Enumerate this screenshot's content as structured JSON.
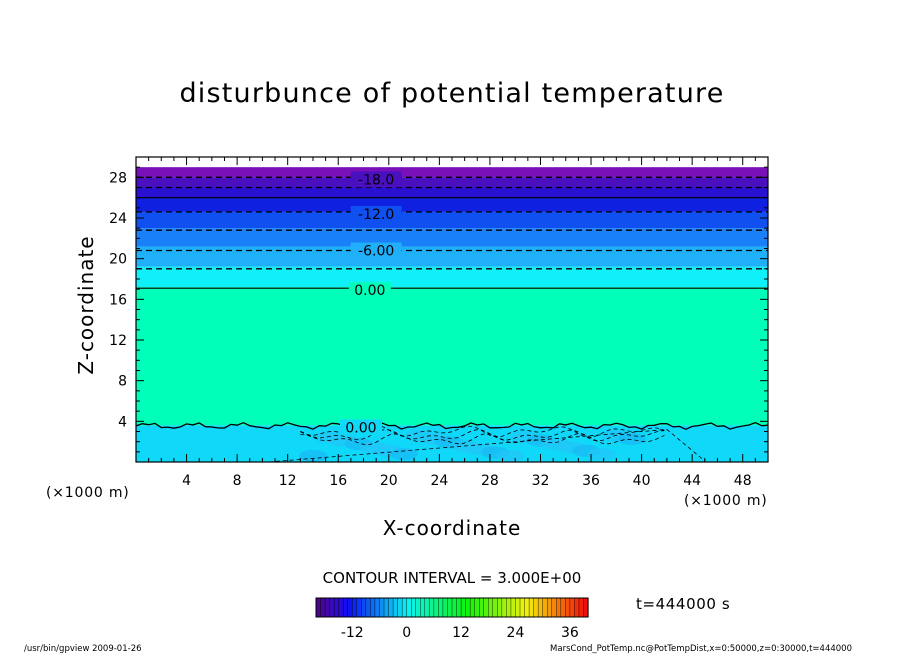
{
  "chart_data": {
    "type": "heatmap",
    "title": "disturbunce of potential temperature",
    "xlabel": "X-coordinate",
    "ylabel": "Z-coordinate",
    "x_unit_left": "(×1000 m)",
    "x_unit_right": "(×1000 m)",
    "xlim": [
      0,
      50
    ],
    "ylim": [
      0,
      30
    ],
    "x_ticks": [
      "4",
      "8",
      "12",
      "16",
      "20",
      "24",
      "28",
      "32",
      "36",
      "40",
      "44",
      "48"
    ],
    "y_ticks": [
      "4",
      "8",
      "12",
      "16",
      "20",
      "24",
      "28"
    ],
    "contour_interval": "CONTOUR INTERVAL = 3.000E+00",
    "contour_labels": [
      {
        "text": "-18.0",
        "x": 19.0,
        "z": 27.8
      },
      {
        "text": "-12.0",
        "x": 19.0,
        "z": 24.4
      },
      {
        "text": "-6.00",
        "x": 19.0,
        "z": 20.8
      },
      {
        "text": "0.00",
        "x": 18.5,
        "z": 16.9
      },
      {
        "text": "0.00",
        "x": 17.8,
        "z": 3.4
      }
    ],
    "bands": [
      {
        "z0": 28.0,
        "z1": 29.0,
        "color": "#7a10b8"
      },
      {
        "z0": 27.0,
        "z1": 28.0,
        "color": "#4a10c0"
      },
      {
        "z0": 26.0,
        "z1": 27.0,
        "color": "#2a10d0"
      },
      {
        "z0": 24.6,
        "z1": 26.0,
        "color": "#1020e0"
      },
      {
        "z0": 23.0,
        "z1": 24.6,
        "color": "#1050f0"
      },
      {
        "z0": 21.2,
        "z1": 23.0,
        "color": "#1a80f8"
      },
      {
        "z0": 19.2,
        "z1": 21.2,
        "color": "#20b0fa"
      },
      {
        "z0": 17.2,
        "z1": 19.2,
        "color": "#10f0f8"
      },
      {
        "z0": 3.6,
        "z1": 17.2,
        "color": "#00ffb8"
      },
      {
        "z0": 0.0,
        "z1": 3.6,
        "color": "#10d8f8"
      }
    ],
    "contours": [
      {
        "z": 28.0,
        "dashed": true
      },
      {
        "z": 27.0,
        "dashed": true
      },
      {
        "z": 26.0,
        "dashed": false
      },
      {
        "z": 24.6,
        "dashed": true
      },
      {
        "z": 22.8,
        "dashed": true
      },
      {
        "z": 20.8,
        "dashed": true
      },
      {
        "z": 19.0,
        "dashed": true
      },
      {
        "z": 17.1,
        "dashed": false
      }
    ],
    "colorbar": {
      "ticks": [
        "-12",
        "0",
        "12",
        "24",
        "36"
      ],
      "range": [
        -20,
        40
      ]
    },
    "time_label": "t=444000 s"
  },
  "footer": {
    "left": "/usr/bin/gpview 2009-01-26",
    "right": "MarsCond_PotTemp.nc@PotTempDist,x=0:50000,z=0:30000,t=444000"
  }
}
